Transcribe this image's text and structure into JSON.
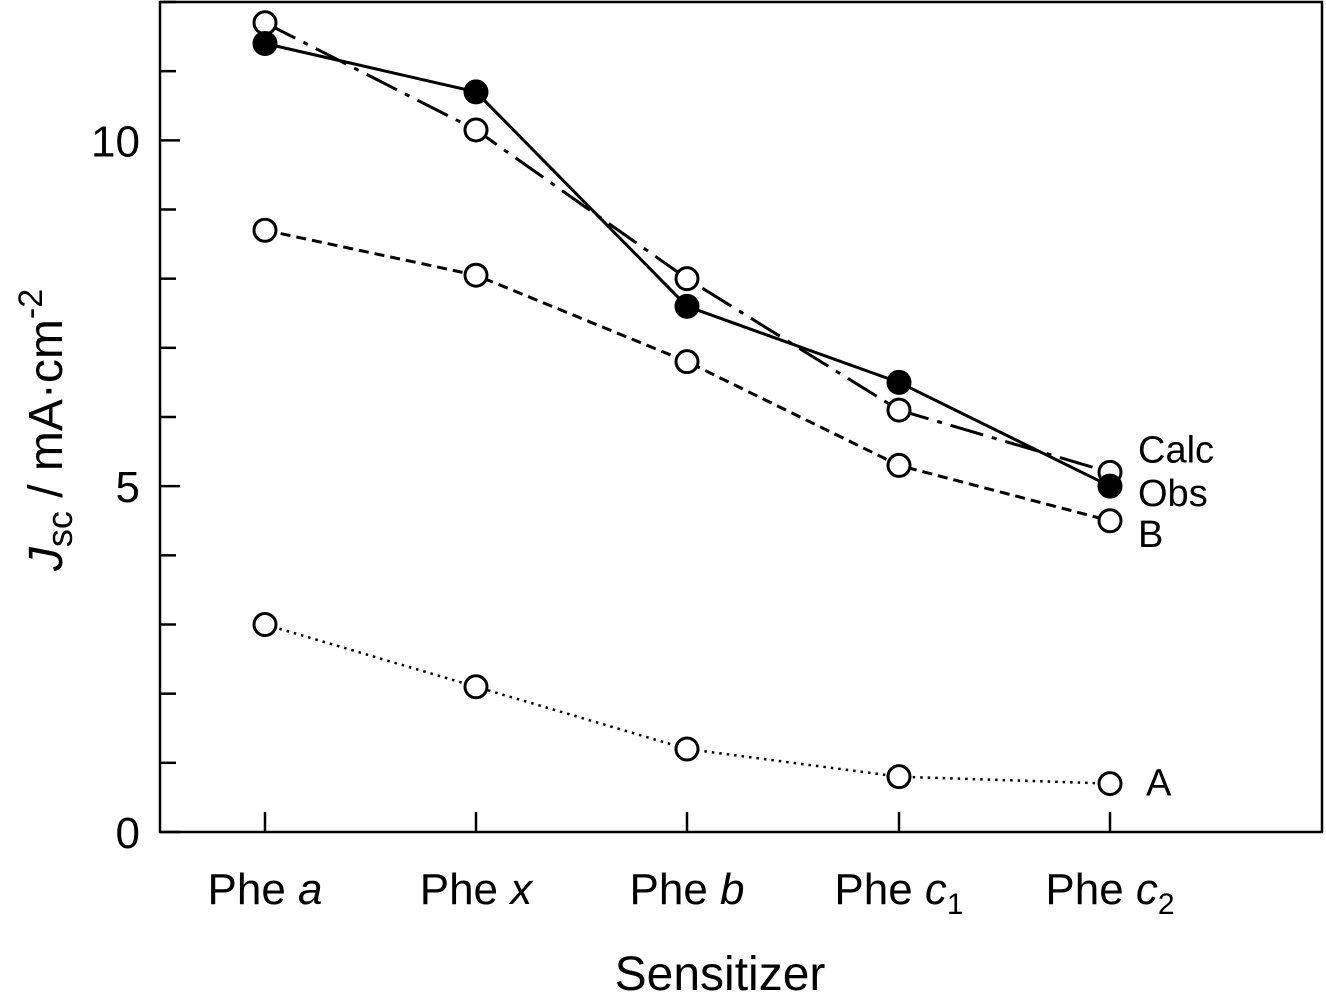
{
  "chart_data": {
    "type": "line",
    "title": "",
    "xlabel": "Sensitizer",
    "ylabel": {
      "main": "J",
      "sub": "sc",
      "unit": " / mA·cm",
      "sup": "-2"
    },
    "categories": [
      {
        "base": "Phe ",
        "letter": "a",
        "sub": ""
      },
      {
        "base": "Phe ",
        "letter": "x",
        "sub": ""
      },
      {
        "base": "Phe ",
        "letter": "b",
        "sub": ""
      },
      {
        "base": "Phe ",
        "letter": "c",
        "sub": "1"
      },
      {
        "base": "Phe ",
        "letter": "c",
        "sub": "2"
      }
    ],
    "ylim": [
      0,
      12
    ],
    "yticks_major": [
      0,
      5,
      10
    ],
    "yticks_minor": [
      1,
      2,
      3,
      4,
      6,
      7,
      8,
      9,
      11,
      12
    ],
    "series": [
      {
        "name": "Calc",
        "style": "dashdot",
        "marker": "open",
        "values": [
          11.7,
          10.15,
          8.0,
          6.1,
          5.2
        ]
      },
      {
        "name": "Obs",
        "style": "solid",
        "marker": "filled",
        "values": [
          11.4,
          10.7,
          7.6,
          6.5,
          5.0
        ]
      },
      {
        "name": "B",
        "style": "dashed",
        "marker": "open",
        "values": [
          8.7,
          8.05,
          6.8,
          5.3,
          4.5
        ]
      },
      {
        "name": "A",
        "style": "dotted",
        "marker": "open",
        "values": [
          3.0,
          2.1,
          1.2,
          0.8,
          0.7
        ]
      }
    ]
  }
}
